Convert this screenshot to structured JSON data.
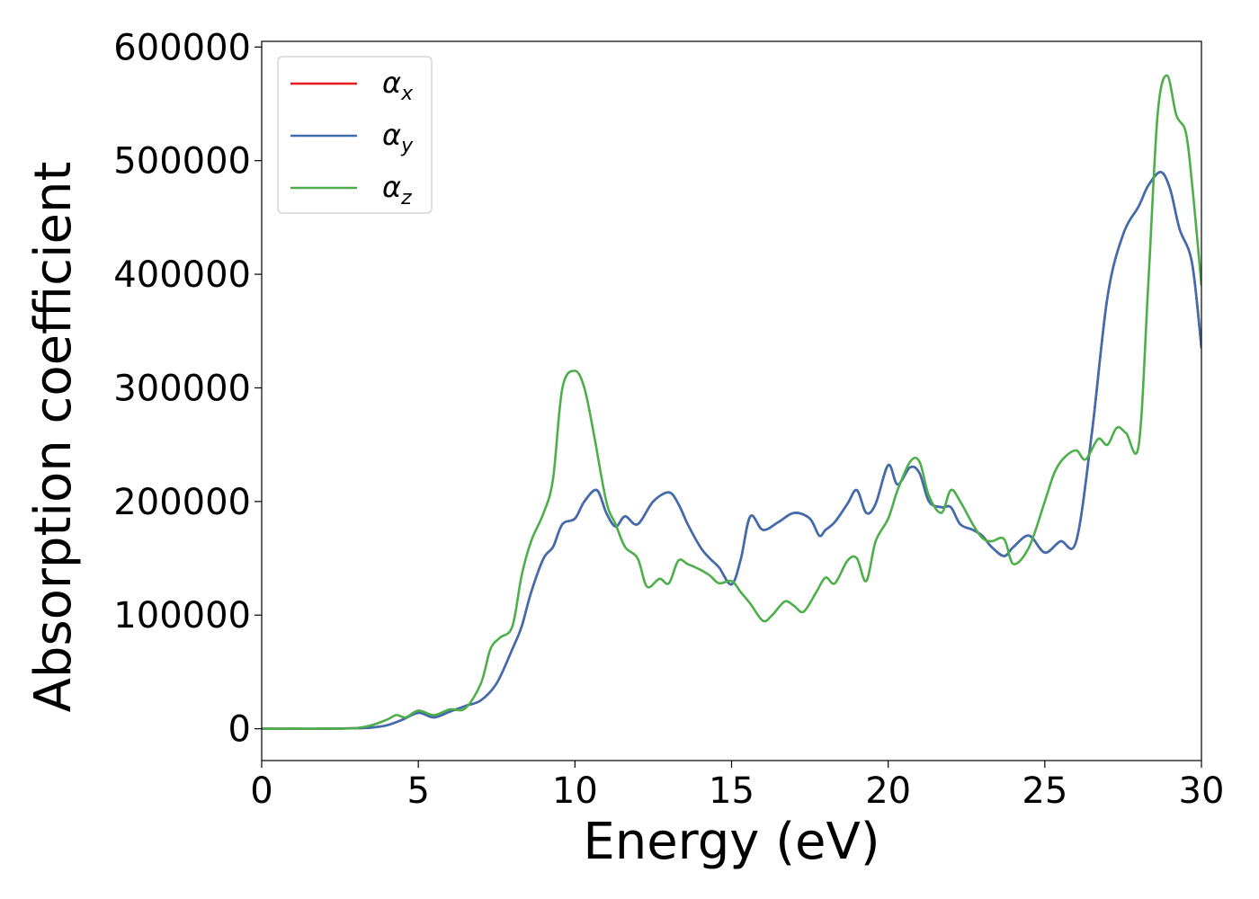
{
  "chart_data": {
    "type": "line",
    "xlabel": "Energy (eV)",
    "ylabel": "Absorption coefficient",
    "xlim": [
      0,
      30
    ],
    "ylim": [
      -28000,
      605000
    ],
    "xticks": [
      0,
      5,
      10,
      15,
      20,
      25,
      30
    ],
    "yticks": [
      0,
      100000,
      200000,
      300000,
      400000,
      500000,
      600000
    ],
    "legend_position": "upper-left",
    "grid": false,
    "series": [
      {
        "name": "α",
        "subscript": "x",
        "color": "#e41a1c",
        "x": [
          0,
          1,
          2,
          3,
          3.5,
          4,
          4.5,
          5,
          5.5,
          6,
          6.5,
          7,
          7.5,
          8,
          8.3,
          8.6,
          9,
          9.3,
          9.6,
          10,
          10.3,
          10.7,
          11,
          11.3,
          11.6,
          12,
          12.5,
          13,
          13.3,
          13.6,
          14,
          14.3,
          14.6,
          15,
          15.3,
          15.6,
          16,
          16.5,
          17,
          17.5,
          17.8,
          18,
          18.3,
          18.7,
          19,
          19.3,
          19.6,
          20,
          20.3,
          20.7,
          21,
          21.3,
          21.7,
          22,
          22.3,
          22.7,
          23,
          23.3,
          23.7,
          24,
          24.5,
          25,
          25.5,
          26,
          26.5,
          27,
          27.5,
          28,
          28.3,
          28.7,
          29,
          29.3,
          29.7,
          30
        ],
        "y": [
          0,
          0,
          0,
          500,
          1000,
          3000,
          8000,
          14000,
          10000,
          15000,
          20000,
          25000,
          40000,
          70000,
          90000,
          120000,
          150000,
          160000,
          180000,
          185000,
          200000,
          210000,
          190000,
          178000,
          187000,
          180000,
          200000,
          208000,
          198000,
          180000,
          160000,
          150000,
          142000,
          127000,
          150000,
          187000,
          175000,
          182000,
          190000,
          185000,
          170000,
          175000,
          182000,
          198000,
          210000,
          190000,
          198000,
          232000,
          215000,
          230000,
          225000,
          200000,
          195000,
          195000,
          180000,
          175000,
          170000,
          160000,
          152000,
          160000,
          170000,
          155000,
          165000,
          165000,
          260000,
          380000,
          435000,
          460000,
          478000,
          490000,
          475000,
          440000,
          410000,
          335000
        ]
      },
      {
        "name": "α",
        "subscript": "y",
        "color": "#3d6eaf",
        "x": [
          0,
          1,
          2,
          3,
          3.5,
          4,
          4.5,
          5,
          5.5,
          6,
          6.5,
          7,
          7.5,
          8,
          8.3,
          8.6,
          9,
          9.3,
          9.6,
          10,
          10.3,
          10.7,
          11,
          11.3,
          11.6,
          12,
          12.5,
          13,
          13.3,
          13.6,
          14,
          14.3,
          14.6,
          15,
          15.3,
          15.6,
          16,
          16.5,
          17,
          17.5,
          17.8,
          18,
          18.3,
          18.7,
          19,
          19.3,
          19.6,
          20,
          20.3,
          20.7,
          21,
          21.3,
          21.7,
          22,
          22.3,
          22.7,
          23,
          23.3,
          23.7,
          24,
          24.5,
          25,
          25.5,
          26,
          26.5,
          27,
          27.5,
          28,
          28.3,
          28.7,
          29,
          29.3,
          29.7,
          30
        ],
        "y": [
          0,
          0,
          0,
          500,
          1000,
          3000,
          8000,
          14000,
          10000,
          15000,
          20000,
          25000,
          40000,
          70000,
          90000,
          120000,
          150000,
          160000,
          180000,
          185000,
          200000,
          210000,
          190000,
          178000,
          187000,
          180000,
          200000,
          208000,
          198000,
          180000,
          160000,
          150000,
          142000,
          127000,
          150000,
          187000,
          175000,
          182000,
          190000,
          185000,
          170000,
          175000,
          182000,
          198000,
          210000,
          190000,
          198000,
          232000,
          215000,
          230000,
          225000,
          200000,
          195000,
          195000,
          180000,
          175000,
          170000,
          160000,
          152000,
          160000,
          170000,
          155000,
          165000,
          165000,
          260000,
          380000,
          435000,
          460000,
          478000,
          490000,
          475000,
          440000,
          410000,
          335000
        ]
      },
      {
        "name": "α",
        "subscript": "z",
        "color": "#4daf4a",
        "x": [
          0,
          1,
          2,
          3,
          3.5,
          4,
          4.3,
          4.6,
          5,
          5.5,
          6,
          6.5,
          7,
          7.3,
          7.6,
          8,
          8.3,
          8.6,
          9,
          9.3,
          9.6,
          10,
          10.3,
          10.6,
          11,
          11.3,
          11.6,
          12,
          12.3,
          12.7,
          13,
          13.3,
          13.6,
          14,
          14.3,
          14.6,
          15,
          15.3,
          15.6,
          16,
          16.3,
          16.7,
          17,
          17.3,
          17.7,
          18,
          18.3,
          18.7,
          19,
          19.3,
          19.6,
          20,
          20.3,
          20.7,
          21,
          21.3,
          21.7,
          22,
          22.3,
          22.7,
          23,
          23.3,
          23.7,
          24,
          24.5,
          25,
          25.3,
          25.6,
          26,
          26.3,
          26.7,
          27,
          27.3,
          27.6,
          28,
          28.3,
          28.6,
          28.9,
          29.2,
          29.5,
          29.7,
          30
        ],
        "y": [
          0,
          0,
          0,
          500,
          3000,
          8000,
          12000,
          10000,
          16000,
          12000,
          17000,
          18000,
          40000,
          70000,
          80000,
          90000,
          135000,
          165000,
          190000,
          220000,
          300000,
          315000,
          300000,
          260000,
          200000,
          180000,
          160000,
          150000,
          125000,
          132000,
          128000,
          148000,
          145000,
          140000,
          135000,
          128000,
          130000,
          120000,
          110000,
          95000,
          100000,
          112000,
          108000,
          103000,
          120000,
          133000,
          128000,
          148000,
          150000,
          130000,
          165000,
          185000,
          210000,
          235000,
          235000,
          205000,
          190000,
          210000,
          200000,
          180000,
          168000,
          165000,
          167000,
          145000,
          160000,
          200000,
          225000,
          238000,
          245000,
          237000,
          255000,
          250000,
          265000,
          260000,
          250000,
          390000,
          540000,
          575000,
          540000,
          525000,
          480000,
          390000
        ]
      }
    ]
  }
}
